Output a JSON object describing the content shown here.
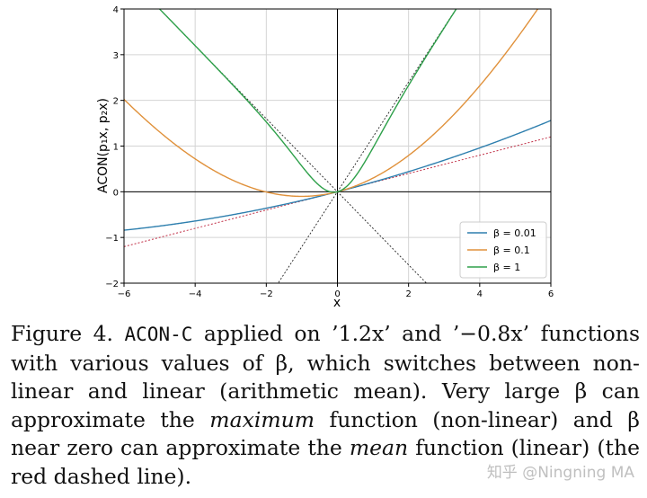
{
  "chart_data": {
    "type": "line",
    "xlabel": "x",
    "ylabel": "ACON(p₁x, p₂x)",
    "xlim": [
      -6,
      6
    ],
    "ylim": [
      -2,
      4
    ],
    "xticks": [
      "−6",
      "−4",
      "−2",
      "0",
      "2",
      "4",
      "6"
    ],
    "yticks": [
      "−2",
      "−1",
      "0",
      "1",
      "2",
      "3",
      "4"
    ],
    "p1": 1.2,
    "p2": -0.8,
    "grid": true,
    "legend_position": "bottom-right",
    "series": [
      {
        "name": "β = 0.01",
        "beta": 0.01,
        "color": "#2e7fae"
      },
      {
        "name": "β = 0.1",
        "beta": 0.1,
        "color": "#e0913b"
      },
      {
        "name": "β = 1",
        "beta": 1,
        "color": "#2ea04a"
      }
    ],
    "reference_lines": {
      "max_color": "#222222",
      "mean_color": "#c2334a"
    }
  },
  "caption": {
    "prefix": "Figure 4. ",
    "code": "ACON-C",
    "text1": " applied on ’1.2x’ and ’−0.8x’ functions with various values of β, which switches between non-linear and linear (arithmetic mean). Very large β can approximate the ",
    "em1": "maximum",
    "text2": " function (non-linear) and β near zero can approximate the ",
    "em2": "mean",
    "text3": " function (linear) (the red dashed line)."
  },
  "watermark": "知乎 @Ningning MA"
}
